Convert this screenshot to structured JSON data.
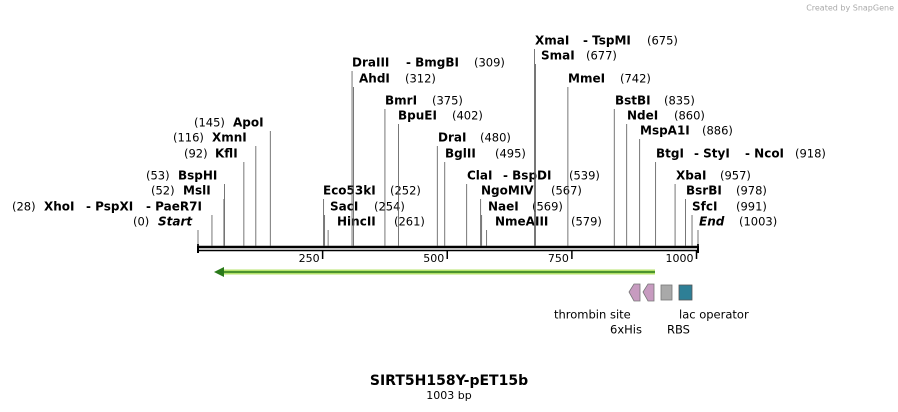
{
  "credit": "Created by SnapGene",
  "map": {
    "title": "SIRT5H158Y-pET15b",
    "length": "1003 bp",
    "bp_total": 1003,
    "enzymes": [
      {
        "names": [
          "Start"
        ],
        "site": {
          "value": 0,
          "label": "(0)"
        }
      },
      {
        "names": [
          "XhoI",
          "- PspXI",
          "- PaeR7I"
        ],
        "site": {
          "value": 28,
          "label": "(28)"
        }
      },
      {
        "names": [
          "MslI"
        ],
        "site": {
          "value": 52,
          "label": "(52)"
        }
      },
      {
        "names": [
          "BspHI"
        ],
        "site": {
          "value": 53,
          "label": "(53)"
        }
      },
      {
        "names": [
          "KflI"
        ],
        "site": {
          "value": 92,
          "label": "(92)"
        }
      },
      {
        "names": [
          "XmnI"
        ],
        "site": {
          "value": 116,
          "label": "(116)"
        }
      },
      {
        "names": [
          "ApoI"
        ],
        "site": {
          "value": 145,
          "label": "(145)"
        }
      },
      {
        "names": [
          "Eco53kI"
        ],
        "site": {
          "value": 252,
          "label": "(252)"
        }
      },
      {
        "names": [
          "SacI"
        ],
        "site": {
          "value": 254,
          "label": "(254)"
        }
      },
      {
        "names": [
          "HincII"
        ],
        "site": {
          "value": 261,
          "label": "(261)"
        }
      },
      {
        "names": [
          "DraIII",
          "- BmgBI"
        ],
        "site": {
          "value": 309,
          "label": "(309)"
        }
      },
      {
        "names": [
          "AhdI"
        ],
        "site": {
          "value": 312,
          "label": "(312)"
        }
      },
      {
        "names": [
          "BmrI"
        ],
        "site": {
          "value": 375,
          "label": "(375)"
        }
      },
      {
        "names": [
          "BpuEI"
        ],
        "site": {
          "value": 402,
          "label": "(402)"
        }
      },
      {
        "names": [
          "DraI"
        ],
        "site": {
          "value": 480,
          "label": "(480)"
        }
      },
      {
        "names": [
          "BglII"
        ],
        "site": {
          "value": 495,
          "label": "(495)"
        }
      },
      {
        "names": [
          "ClaI",
          "- BspDI"
        ],
        "site": {
          "value": 539,
          "label": "(539)"
        }
      },
      {
        "names": [
          "NgoMIV"
        ],
        "site": {
          "value": 567,
          "label": "(567)"
        }
      },
      {
        "names": [
          "NaeI"
        ],
        "site": {
          "value": 569,
          "label": "(569)"
        }
      },
      {
        "names": [
          "NmeAIII"
        ],
        "site": {
          "value": 579,
          "label": "(579)"
        }
      },
      {
        "names": [
          "XmaI",
          "- TspMI"
        ],
        "site": {
          "value": 675,
          "label": "(675)"
        }
      },
      {
        "names": [
          "SmaI"
        ],
        "site": {
          "value": 677,
          "label": "(677)"
        }
      },
      {
        "names": [
          "MmeI"
        ],
        "site": {
          "value": 742,
          "label": "(742)"
        }
      },
      {
        "names": [
          "BstBI"
        ],
        "site": {
          "value": 835,
          "label": "(835)"
        }
      },
      {
        "names": [
          "NdeI"
        ],
        "site": {
          "value": 860,
          "label": "(860)"
        }
      },
      {
        "names": [
          "MspA1I"
        ],
        "site": {
          "value": 886,
          "label": "(886)"
        }
      },
      {
        "names": [
          "BtgI",
          "- StyI",
          "- NcoI"
        ],
        "site": {
          "value": 918,
          "label": "(918)"
        }
      },
      {
        "names": [
          "XbaI"
        ],
        "site": {
          "value": 957,
          "label": "(957)"
        }
      },
      {
        "names": [
          "BsrBI"
        ],
        "site": {
          "value": 978,
          "label": "(978)"
        }
      },
      {
        "names": [
          "SfcI"
        ],
        "site": {
          "value": 991,
          "label": "(991)"
        }
      },
      {
        "names": [
          "End"
        ],
        "site": {
          "value": 1003,
          "label": "(1003)"
        }
      }
    ],
    "ruler_ticks": [
      250,
      500,
      750,
      1000
    ],
    "features": [
      {
        "name": "thrombin site"
      },
      {
        "name": "6xHis"
      },
      {
        "name": "RBS"
      },
      {
        "name": "lac operator"
      }
    ]
  }
}
